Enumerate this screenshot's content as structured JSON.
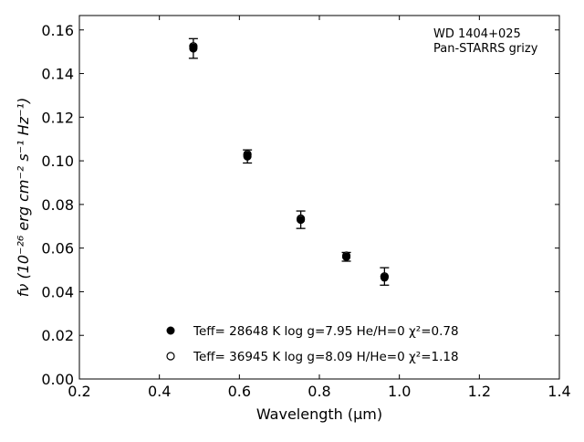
{
  "chart_data": {
    "type": "scatter",
    "annotation": [
      "WD 1404+025",
      "Pan-STARRS grizy"
    ],
    "xlabel": "Wavelength (μm)",
    "ylabel": "fν (10⁻²⁶ erg cm⁻² s⁻¹ Hz⁻¹)",
    "xlim": [
      0.2,
      1.4
    ],
    "ylim": [
      0.0,
      0.1666
    ],
    "x_ticks": [
      "0.2",
      "0.4",
      "0.6",
      "0.8",
      "1.0",
      "1.2",
      "1.4"
    ],
    "y_ticks": [
      "0.00",
      "0.02",
      "0.04",
      "0.06",
      "0.08",
      "0.10",
      "0.12",
      "0.14",
      "0.16"
    ],
    "grid": false,
    "legend_position": "lower-center",
    "legend": [
      {
        "marker": "filled-circle",
        "label": "Teff= 28648 K  log g=7.95  He/H=0  χ²=0.78"
      },
      {
        "marker": "open-circle",
        "label": "Teff= 36945 K  log g=8.09  H/He=0  χ²=1.18"
      }
    ],
    "series": [
      {
        "kind": "observed-with-errorbars",
        "x": [
          0.4849,
          0.6201,
          0.7535,
          0.8674,
          0.9628
        ],
        "y": [
          0.1515,
          0.102,
          0.073,
          0.056,
          0.047
        ],
        "err": [
          0.0045,
          0.003,
          0.004,
          0.002,
          0.004
        ]
      },
      {
        "kind": "model-filled",
        "x": [
          0.4849,
          0.6201,
          0.7535,
          0.8674,
          0.9628
        ],
        "y": [
          0.152,
          0.1025,
          0.073,
          0.056,
          0.0465
        ]
      },
      {
        "kind": "model-open",
        "x": [
          0.4849,
          0.6201,
          0.7535,
          0.8674,
          0.9628
        ],
        "y": [
          0.1525,
          0.103,
          0.0735,
          0.0565,
          0.047
        ]
      }
    ]
  }
}
